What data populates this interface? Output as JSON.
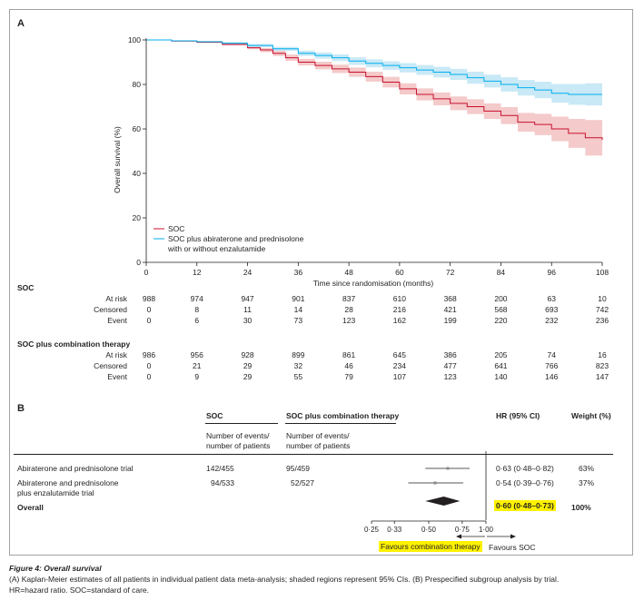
{
  "panel_a_label": "A",
  "panel_b_label": "B",
  "chart_data": {
    "type": "line",
    "xlabel": "Time since randomisation (months)",
    "ylabel": "Overall survival (%)",
    "xlim": [
      0,
      108
    ],
    "ylim": [
      0,
      100
    ],
    "xticks": [
      0,
      12,
      24,
      36,
      48,
      60,
      72,
      84,
      96,
      108
    ],
    "yticks": [
      0,
      20,
      40,
      60,
      80,
      100
    ],
    "legend_position": "lower-left",
    "series": [
      {
        "name": "SOC",
        "color": "#c8102e",
        "band_color": "#f3c4c4",
        "x": [
          0,
          6,
          12,
          18,
          24,
          27,
          30,
          33,
          36,
          40,
          44,
          48,
          52,
          56,
          60,
          64,
          68,
          72,
          76,
          80,
          84,
          88,
          92,
          96,
          100,
          104,
          108
        ],
        "y": [
          100,
          99.5,
          99,
          98,
          96.5,
          95.5,
          94,
          92,
          90,
          88.5,
          87,
          85.5,
          83.5,
          81,
          78,
          75.5,
          73.5,
          71.5,
          70,
          68,
          66,
          63,
          62,
          60,
          58,
          56,
          55
        ],
        "lower": [
          100,
          99.3,
          98.6,
          97.5,
          95.8,
          94.5,
          92.8,
          90.6,
          88.5,
          86.8,
          85.1,
          83.4,
          81.3,
          78.6,
          75.5,
          72.8,
          70.6,
          68.4,
          66.7,
          64.5,
          62.2,
          58.8,
          57.2,
          54.5,
          51.5,
          48,
          45.5
        ],
        "upper": [
          100,
          99.7,
          99.4,
          98.5,
          97.2,
          96.4,
          95.2,
          93.4,
          91.5,
          90.2,
          88.9,
          87.6,
          85.7,
          83.4,
          80.5,
          78.2,
          76.4,
          74.6,
          73.3,
          71.5,
          69.8,
          67.2,
          66.8,
          65.5,
          64.5,
          64,
          64.5
        ]
      },
      {
        "name": "SOC plus abiraterone and prednisolone with or without enzalutamide",
        "color": "#00aeef",
        "band_color": "#bfe5f5",
        "x": [
          0,
          6,
          12,
          18,
          24,
          30,
          36,
          40,
          44,
          48,
          52,
          56,
          60,
          64,
          68,
          72,
          76,
          80,
          84,
          88,
          92,
          96,
          100,
          104,
          108
        ],
        "y": [
          100,
          99.6,
          99.2,
          98.5,
          97.5,
          96,
          94,
          93,
          92,
          90.5,
          89.5,
          88.5,
          87.5,
          86.5,
          85.5,
          84.5,
          83,
          81.5,
          80,
          78.5,
          77.5,
          76,
          75.5,
          75.5,
          75.5
        ],
        "lower": [
          100,
          99.4,
          98.9,
          98,
          96.8,
          95.1,
          92.8,
          91.6,
          90.5,
          88.8,
          87.7,
          86.6,
          85.4,
          84.3,
          83.1,
          82,
          80.3,
          78.6,
          76.8,
          75,
          73.8,
          71.8,
          70.8,
          70.5,
          70.5
        ],
        "upper": [
          100,
          99.8,
          99.5,
          99,
          98.2,
          96.9,
          95.2,
          94.4,
          93.5,
          92.2,
          91.3,
          90.4,
          89.6,
          88.7,
          87.9,
          87,
          85.7,
          84.4,
          83.2,
          82,
          81.2,
          80.2,
          80.2,
          80.5,
          80.5
        ]
      }
    ]
  },
  "risk_table": {
    "times": [
      "0",
      "12",
      "24",
      "36",
      "48",
      "60",
      "72",
      "84",
      "96",
      "108"
    ],
    "groups": [
      {
        "title": "SOC",
        "rows": [
          {
            "label": "At risk",
            "values": [
              "988",
              "974",
              "947",
              "901",
              "837",
              "610",
              "368",
              "200",
              "63",
              "10"
            ]
          },
          {
            "label": "Censored",
            "values": [
              "0",
              "8",
              "11",
              "14",
              "28",
              "216",
              "421",
              "568",
              "693",
              "742"
            ]
          },
          {
            "label": "Event",
            "values": [
              "0",
              "6",
              "30",
              "73",
              "123",
              "162",
              "199",
              "220",
              "232",
              "236"
            ]
          }
        ]
      },
      {
        "title": "SOC plus combination therapy",
        "rows": [
          {
            "label": "At risk",
            "values": [
              "986",
              "956",
              "928",
              "899",
              "861",
              "645",
              "386",
              "205",
              "74",
              "16"
            ]
          },
          {
            "label": "Censored",
            "values": [
              "0",
              "21",
              "29",
              "32",
              "46",
              "234",
              "477",
              "641",
              "766",
              "823"
            ]
          },
          {
            "label": "Event",
            "values": [
              "0",
              "9",
              "29",
              "55",
              "79",
              "107",
              "123",
              "140",
              "146",
              "147"
            ]
          }
        ]
      }
    ]
  },
  "forest": {
    "col_soc": "SOC",
    "col_combo": "SOC plus combination therapy",
    "col_hr": "HR (95% CI)",
    "col_weight": "Weight (%)",
    "sub_soc_line1": "Number of events/",
    "sub_soc_line2": "number of patients",
    "sub_combo_line1": "Number of events/",
    "sub_combo_line2": "number of patients",
    "rows": [
      {
        "label": "Abiraterone and prednisolone trial",
        "label2": "",
        "soc": "142/455",
        "combo": "95/459",
        "hr_text": "0·63 (0·48–0·82)",
        "weight": "63%",
        "hr": 0.63,
        "lo": 0.48,
        "hi": 0.82
      },
      {
        "label": "Abiraterone and prednisolone",
        "label2": "plus enzalutamide trial",
        "soc": "94/533",
        "combo": "52/527",
        "hr_text": "0·54 (0·39–0·76)",
        "weight": "37%",
        "hr": 0.54,
        "lo": 0.39,
        "hi": 0.76
      }
    ],
    "overall": {
      "label": "Overall",
      "hr_text": "0·60 (0·48–0·73)",
      "weight": "100%",
      "hr": 0.6,
      "lo": 0.48,
      "hi": 0.73
    },
    "axis_ticks": [
      {
        "v": 0.25,
        "label": "0·25"
      },
      {
        "v": 0.33,
        "label": "0·33"
      },
      {
        "v": 0.5,
        "label": "0·50"
      },
      {
        "v": 0.75,
        "label": "0·75"
      },
      {
        "v": 1.0,
        "label": "1·00"
      }
    ],
    "favours_left": "Favours combination therapy",
    "favours_right": "Favours SOC",
    "highlight_color": "#fff200"
  },
  "caption": {
    "title": "Figure 4: Overall survival",
    "line1": "(A) Kaplan-Meier estimates of all patients in individual patient data meta-analysis; shaded regions represent 95% CIs. (B) Prespecified subgroup analysis by trial.",
    "line2": "HR=hazard ratio. SOC=standard of care."
  }
}
